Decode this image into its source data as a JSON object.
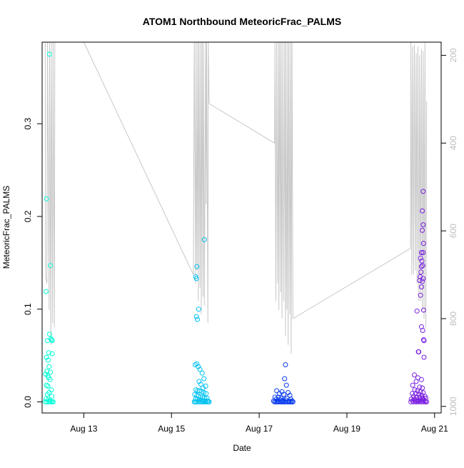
{
  "chart_data": {
    "type": "scatter",
    "title": "ATOM1 Northbound MeteoricFrac_PALMS",
    "xlabel": "Date",
    "ylabel": "MeteoricFrac_PALMS",
    "xlim": [
      12.05,
      21.15
    ],
    "ylim": [
      -0.012,
      0.388
    ],
    "x_ticks": [
      13,
      15,
      17,
      19,
      21
    ],
    "x_tick_labels": [
      "Aug 13",
      "Aug 15",
      "Aug 17",
      "Aug 19",
      "Aug 21"
    ],
    "y_ticks": [
      0.0,
      0.1,
      0.2,
      0.3
    ],
    "y_tick_labels": [
      "0.0",
      "0.1",
      "0.2",
      "0.3"
    ],
    "y2_ticks": [
      200,
      400,
      600,
      800,
      1000
    ],
    "y2_tick_labels": [
      "200",
      "400",
      "600",
      "800",
      "1000"
    ],
    "y2lim": [
      1015,
      170
    ],
    "grid": false,
    "series": [
      {
        "color": "#00FFD8",
        "points": [
          [
            12.22,
            0.375
          ],
          [
            12.15,
            0.219
          ],
          [
            12.24,
            0.147
          ],
          [
            12.14,
            0.119
          ],
          [
            12.22,
            0.073
          ],
          [
            12.25,
            0.068
          ],
          [
            12.27,
            0.067
          ],
          [
            12.28,
            0.066
          ],
          [
            12.17,
            0.066
          ],
          [
            12.2,
            0.053
          ],
          [
            12.28,
            0.052
          ],
          [
            12.15,
            0.048
          ],
          [
            12.19,
            0.045
          ],
          [
            12.21,
            0.038
          ],
          [
            12.16,
            0.033
          ],
          [
            12.24,
            0.032
          ],
          [
            12.13,
            0.03
          ],
          [
            12.18,
            0.028
          ],
          [
            12.2,
            0.026
          ],
          [
            12.23,
            0.024
          ],
          [
            12.15,
            0.018
          ],
          [
            12.18,
            0.017
          ],
          [
            12.26,
            0.013
          ],
          [
            12.21,
            0.01
          ],
          [
            12.17,
            0.008
          ],
          [
            12.27,
            0.006
          ],
          [
            12.14,
            0.003
          ],
          [
            12.19,
            0.002
          ],
          [
            12.23,
            0.001
          ],
          [
            12.25,
            0.0
          ],
          [
            12.28,
            0.0
          ],
          [
            12.16,
            0.0
          ],
          [
            12.3,
            0.0
          ],
          [
            12.21,
            0.0
          ],
          [
            12.12,
            0.0
          ]
        ]
      },
      {
        "color": "#00C2F0",
        "points": [
          [
            15.75,
            0.175
          ],
          [
            15.58,
            0.146
          ],
          [
            15.55,
            0.135
          ],
          [
            15.57,
            0.133
          ],
          [
            15.62,
            0.1
          ],
          [
            15.57,
            0.092
          ],
          [
            15.59,
            0.089
          ],
          [
            15.54,
            0.04
          ],
          [
            15.58,
            0.041
          ],
          [
            15.61,
            0.038
          ],
          [
            15.65,
            0.035
          ],
          [
            15.7,
            0.031
          ],
          [
            15.74,
            0.025
          ],
          [
            15.78,
            0.017
          ],
          [
            15.63,
            0.022
          ],
          [
            15.67,
            0.019
          ],
          [
            15.72,
            0.015
          ],
          [
            15.56,
            0.013
          ],
          [
            15.6,
            0.012
          ],
          [
            15.64,
            0.012
          ],
          [
            15.69,
            0.011
          ],
          [
            15.74,
            0.01
          ],
          [
            15.79,
            0.009
          ],
          [
            15.53,
            0.008
          ],
          [
            15.58,
            0.007
          ],
          [
            15.62,
            0.006
          ],
          [
            15.66,
            0.005
          ],
          [
            15.71,
            0.005
          ],
          [
            15.76,
            0.004
          ],
          [
            15.81,
            0.004
          ],
          [
            15.55,
            0.003
          ],
          [
            15.59,
            0.003
          ],
          [
            15.63,
            0.002
          ],
          [
            15.68,
            0.002
          ],
          [
            15.72,
            0.001
          ],
          [
            15.77,
            0.001
          ],
          [
            15.82,
            0.001
          ],
          [
            15.54,
            0.0
          ],
          [
            15.57,
            0.0
          ],
          [
            15.61,
            0.0
          ],
          [
            15.65,
            0.0
          ],
          [
            15.69,
            0.0
          ],
          [
            15.73,
            0.0
          ],
          [
            15.77,
            0.0
          ],
          [
            15.8,
            0.0
          ],
          [
            15.84,
            0.0
          ],
          [
            15.52,
            0.0
          ],
          [
            15.86,
            0.0
          ]
        ]
      },
      {
        "color": "#0A3CF0",
        "points": [
          [
            17.6,
            0.04
          ],
          [
            17.58,
            0.025
          ],
          [
            17.62,
            0.018
          ],
          [
            17.4,
            0.012
          ],
          [
            17.52,
            0.011
          ],
          [
            17.66,
            0.01
          ],
          [
            17.46,
            0.009
          ],
          [
            17.56,
            0.008
          ],
          [
            17.7,
            0.007
          ],
          [
            17.36,
            0.005
          ],
          [
            17.44,
            0.005
          ],
          [
            17.5,
            0.004
          ],
          [
            17.63,
            0.004
          ],
          [
            17.72,
            0.003
          ],
          [
            17.39,
            0.003
          ],
          [
            17.48,
            0.002
          ],
          [
            17.55,
            0.002
          ],
          [
            17.61,
            0.002
          ],
          [
            17.68,
            0.001
          ],
          [
            17.33,
            0.001
          ],
          [
            17.42,
            0.001
          ],
          [
            17.53,
            0.001
          ],
          [
            17.75,
            0.001
          ],
          [
            17.35,
            0.0
          ],
          [
            17.38,
            0.0
          ],
          [
            17.41,
            0.0
          ],
          [
            17.44,
            0.0
          ],
          [
            17.47,
            0.0
          ],
          [
            17.5,
            0.0
          ],
          [
            17.53,
            0.0
          ],
          [
            17.56,
            0.0
          ],
          [
            17.59,
            0.0
          ],
          [
            17.62,
            0.0
          ],
          [
            17.65,
            0.0
          ],
          [
            17.68,
            0.0
          ],
          [
            17.71,
            0.0
          ],
          [
            17.74,
            0.0
          ],
          [
            17.77,
            0.0
          ]
        ]
      },
      {
        "color": "#7A1FE0",
        "points": [
          [
            20.74,
            0.227
          ],
          [
            20.72,
            0.206
          ],
          [
            20.74,
            0.191
          ],
          [
            20.72,
            0.185
          ],
          [
            20.75,
            0.171
          ],
          [
            20.7,
            0.161
          ],
          [
            20.74,
            0.161
          ],
          [
            20.68,
            0.155
          ],
          [
            20.71,
            0.152
          ],
          [
            20.73,
            0.147
          ],
          [
            20.7,
            0.146
          ],
          [
            20.69,
            0.14
          ],
          [
            20.74,
            0.133
          ],
          [
            20.67,
            0.135
          ],
          [
            20.72,
            0.13
          ],
          [
            20.66,
            0.131
          ],
          [
            20.7,
            0.124
          ],
          [
            20.68,
            0.115
          ],
          [
            20.75,
            0.099
          ],
          [
            20.6,
            0.098
          ],
          [
            20.7,
            0.081
          ],
          [
            20.73,
            0.077
          ],
          [
            20.75,
            0.067
          ],
          [
            20.76,
            0.066
          ],
          [
            20.64,
            0.054
          ],
          [
            20.63,
            0.054
          ],
          [
            20.76,
            0.048
          ],
          [
            20.54,
            0.029
          ],
          [
            20.62,
            0.026
          ],
          [
            20.7,
            0.024
          ],
          [
            20.58,
            0.022
          ],
          [
            20.5,
            0.018
          ],
          [
            20.66,
            0.016
          ],
          [
            20.72,
            0.015
          ],
          [
            20.55,
            0.013
          ],
          [
            20.61,
            0.012
          ],
          [
            20.68,
            0.011
          ],
          [
            20.74,
            0.01
          ],
          [
            20.49,
            0.009
          ],
          [
            20.57,
            0.009
          ],
          [
            20.64,
            0.008
          ],
          [
            20.71,
            0.007
          ],
          [
            20.78,
            0.006
          ],
          [
            20.52,
            0.006
          ],
          [
            20.59,
            0.005
          ],
          [
            20.66,
            0.005
          ],
          [
            20.73,
            0.004
          ],
          [
            20.8,
            0.004
          ],
          [
            20.47,
            0.003
          ],
          [
            20.54,
            0.003
          ],
          [
            20.61,
            0.002
          ],
          [
            20.68,
            0.002
          ],
          [
            20.75,
            0.002
          ],
          [
            20.5,
            0.001
          ],
          [
            20.57,
            0.001
          ],
          [
            20.64,
            0.001
          ],
          [
            20.71,
            0.001
          ],
          [
            20.78,
            0.001
          ],
          [
            20.46,
            0.0
          ],
          [
            20.52,
            0.0
          ],
          [
            20.58,
            0.0
          ],
          [
            20.63,
            0.0
          ],
          [
            20.69,
            0.0
          ],
          [
            20.74,
            0.0
          ],
          [
            20.79,
            0.0
          ],
          [
            20.82,
            0.0
          ]
        ]
      }
    ],
    "altitude_line": {
      "color": "#C8C8C8",
      "x": [
        12.12,
        12.13,
        12.16,
        12.17,
        12.21,
        12.22,
        12.25,
        12.26,
        12.29,
        12.3,
        12.33,
        12.34,
        13.0,
        15.5,
        15.52,
        15.55,
        15.56,
        15.58,
        15.6,
        15.61,
        15.63,
        15.65,
        15.67,
        15.68,
        15.7,
        15.72,
        15.73,
        15.75,
        15.78,
        15.79,
        15.8,
        15.83,
        15.84,
        15.86,
        17.35,
        17.36,
        17.38,
        17.4,
        17.42,
        17.44,
        17.45,
        17.47,
        17.49,
        17.5,
        17.52,
        17.54,
        17.56,
        17.58,
        17.6,
        17.61,
        17.63,
        17.65,
        17.66,
        17.68,
        17.7,
        17.72,
        17.73,
        17.75,
        17.77,
        20.45,
        20.46,
        20.48,
        20.5,
        20.52,
        20.54,
        20.56,
        20.58,
        20.6,
        20.62,
        20.64,
        20.66,
        20.68,
        20.7,
        20.72,
        20.74,
        20.76,
        20.78,
        20.8,
        20.82
      ],
      "y": [
        170,
        705,
        720,
        170,
        780,
        170,
        860,
        170,
        810,
        170,
        820,
        170,
        170,
        700,
        160,
        720,
        160,
        690,
        170,
        760,
        170,
        730,
        170,
        790,
        160,
        750,
        170,
        770,
        170,
        540,
        170,
        810,
        170,
        310,
        400,
        170,
        760,
        170,
        720,
        170,
        780,
        170,
        740,
        170,
        800,
        170,
        760,
        170,
        840,
        170,
        780,
        170,
        860,
        170,
        790,
        170,
        880,
        170,
        800,
        640,
        165,
        700,
        180,
        700,
        175,
        690,
        195,
        720,
        180,
        760,
        200,
        760,
        185,
        780,
        190,
        800,
        170,
        820,
        305
      ]
    }
  }
}
